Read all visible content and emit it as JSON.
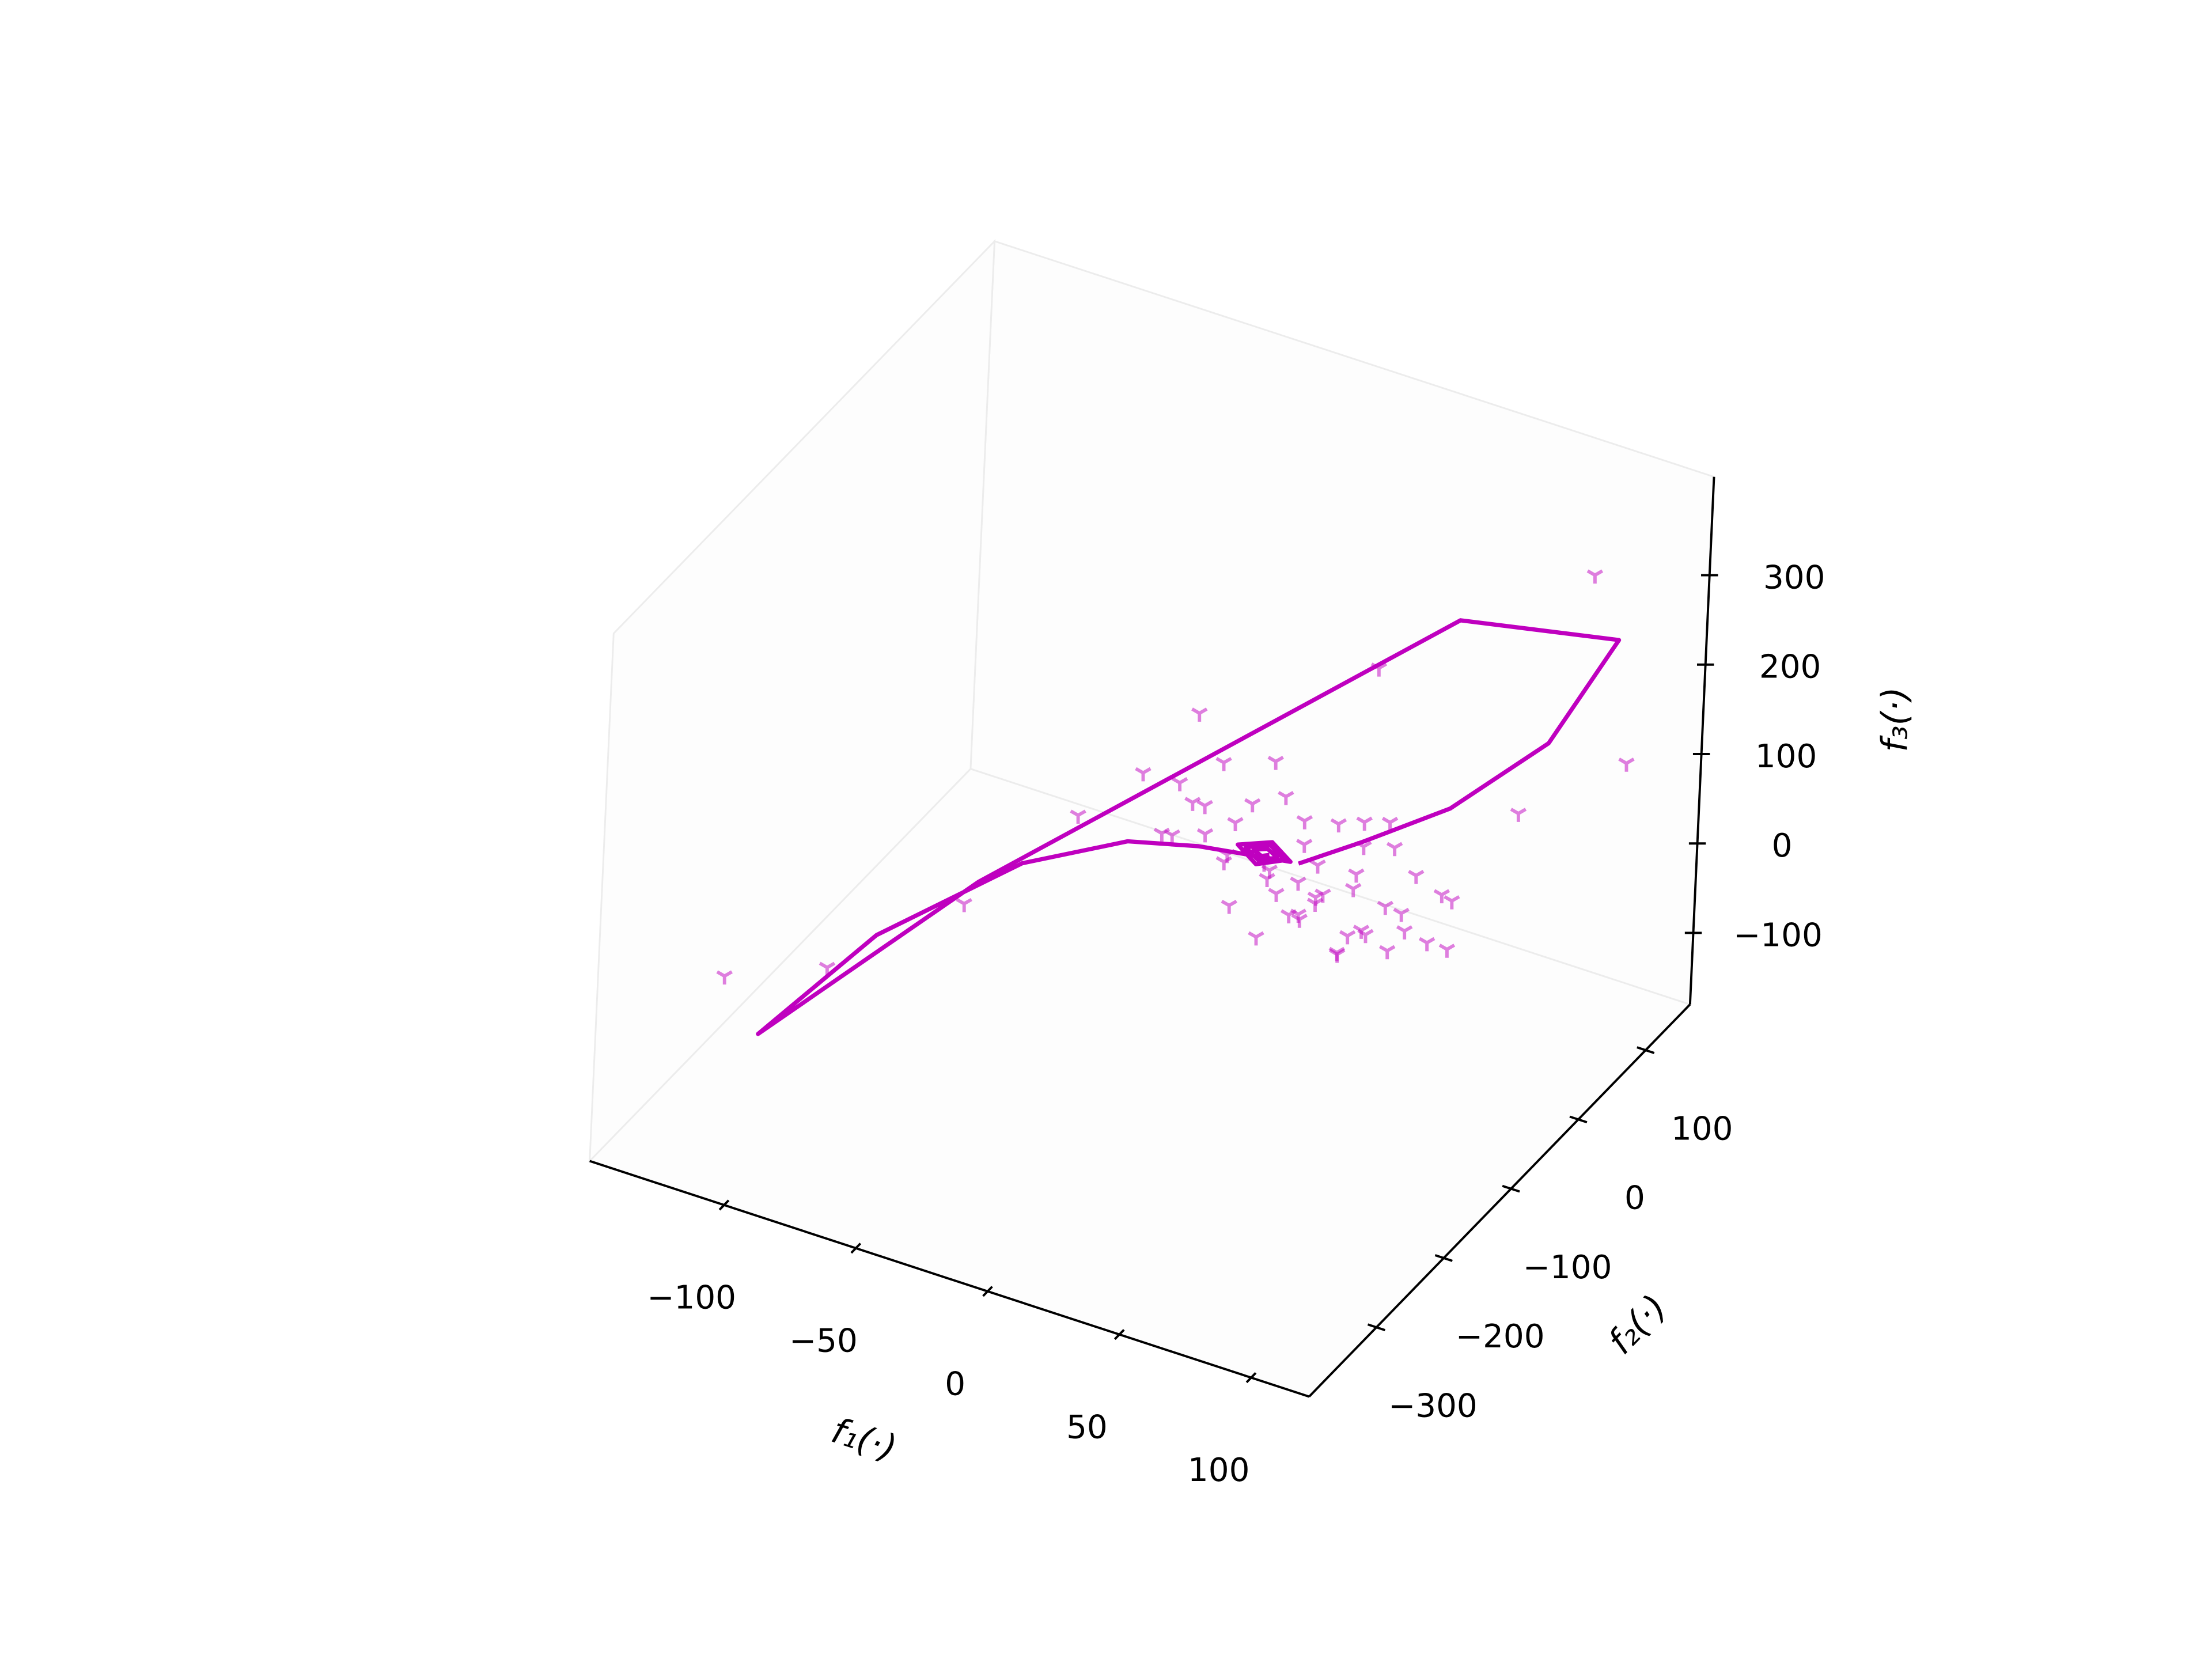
{
  "chart_data": {
    "type": "scatter3d",
    "xlabel": "f₁(·)",
    "ylabel": "f₂(·)",
    "zlabel": "f₃(·)",
    "xlim": [
      -151,
      122
    ],
    "ylim": [
      -400,
      166
    ],
    "zlim": [
      -180,
      410
    ],
    "xticks": [
      {
        "value": -100,
        "label": "−100"
      },
      {
        "value": -50,
        "label": "−50"
      },
      0,
      50,
      100
    ],
    "yticks": [
      {
        "value": -300,
        "label": "−300"
      },
      {
        "value": -200,
        "label": "−200"
      },
      {
        "value": -100,
        "label": "−100"
      },
      0,
      100
    ],
    "zticks": [
      {
        "value": -100,
        "label": "−100"
      },
      0,
      100,
      200,
      300
    ],
    "grid": false,
    "series": [
      {
        "type": "line",
        "color": "#bf00bf",
        "x": [
          14,
          30,
          53,
          75,
          95,
          51,
          -79,
          -119,
          -103,
          -74,
          -45,
          -21,
          10,
          0,
          -10,
          0,
          8,
          0,
          -7,
          0,
          5,
          0,
          -4,
          0,
          2
        ],
        "y": [
          -4,
          28,
          66,
          123,
          142,
          77,
          -114,
          -280,
          -169,
          -68,
          -26,
          -16,
          0,
          12,
          0,
          -12,
          0,
          9,
          0,
          -8,
          0,
          5,
          0,
          -4,
          0
        ],
        "z": [
          5,
          20,
          50,
          100,
          220,
          250,
          -20,
          -100,
          -60,
          -30,
          -10,
          0,
          0,
          3,
          0,
          -3,
          0,
          2,
          0,
          -2,
          0,
          1,
          0,
          0,
          0
        ]
      },
      {
        "type": "scatter",
        "color": "#bf00bf",
        "marker": "tri_down",
        "alpha": 0.5,
        "x": [
          -30,
          -20,
          -10,
          0,
          10,
          20,
          30,
          40,
          50,
          60,
          -5,
          5,
          15,
          25,
          35,
          -15,
          -25,
          -35,
          45,
          55,
          65,
          12,
          -12,
          22,
          -8,
          8,
          28,
          38,
          48,
          -18,
          -28,
          18,
          2,
          32,
          42,
          52,
          -2,
          14,
          26,
          36,
          -22,
          6,
          16,
          46,
          58,
          -38,
          24,
          34,
          4,
          70,
          89,
          29,
          -22,
          -121,
          103,
          74,
          -101,
          -57,
          -77,
          -43
        ],
        "y": [
          10,
          -10,
          20,
          30,
          -20,
          0,
          20,
          -10,
          30,
          10,
          -30,
          40,
          -5,
          50,
          -25,
          5,
          35,
          -15,
          5,
          -5,
          25,
          12,
          -12,
          -32,
          45,
          -40,
          38,
          -38,
          18,
          28,
          -28,
          8,
          -2,
          8,
          28,
          -18,
          18,
          26,
          -14,
          44,
          -4,
          30,
          -24,
          -28,
          38,
          22,
          14,
          -6,
          -16,
          0,
          125,
          45,
          -19,
          -328,
          129,
          85,
          -252,
          -55,
          -143,
          -15
        ],
        "z": [
          20,
          10,
          30,
          40,
          -20,
          -30,
          -10,
          -40,
          0,
          -50,
          -40,
          10,
          -50,
          20,
          -60,
          -20,
          50,
          0,
          -20,
          -30,
          -10,
          12,
          -12,
          -28,
          60,
          -55,
          5,
          -45,
          -35,
          -5,
          15,
          -45,
          -25,
          -15,
          25,
          -45,
          -35,
          -20,
          -10,
          35,
          35,
          -50,
          -35,
          -25,
          -20,
          25,
          45,
          -55,
          5,
          -40,
          300,
          200,
          150,
          0,
          100,
          50,
          -30,
          30,
          -20,
          60
        ]
      }
    ]
  }
}
